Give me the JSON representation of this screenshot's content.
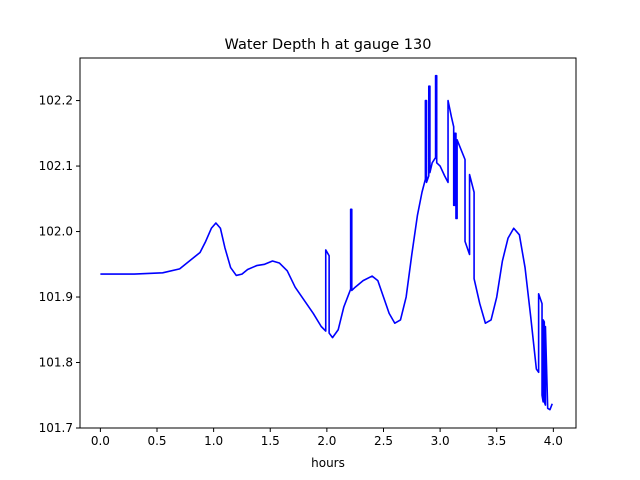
{
  "chart_data": {
    "type": "line",
    "title": "Water Depth h at gauge 130",
    "xlabel": "hours",
    "ylabel": "",
    "xlim": [
      -0.18,
      4.2
    ],
    "ylim": [
      101.7,
      102.265
    ],
    "xticks": [
      0.0,
      0.5,
      1.0,
      1.5,
      2.0,
      2.5,
      3.0,
      3.5,
      4.0
    ],
    "xtick_labels": [
      "0.0",
      "0.5",
      "1.0",
      "1.5",
      "2.0",
      "2.5",
      "3.0",
      "3.5",
      "4.0"
    ],
    "yticks": [
      101.7,
      101.8,
      101.9,
      102.0,
      102.1,
      102.2
    ],
    "ytick_labels": [
      "101.7",
      "101.8",
      "101.9",
      "102.0",
      "102.1",
      "102.2"
    ],
    "grid": false,
    "series": [
      {
        "color": "#0000ff",
        "x": [
          0.0,
          0.3,
          0.55,
          0.7,
          0.8,
          0.88,
          0.93,
          0.98,
          1.02,
          1.06,
          1.1,
          1.15,
          1.2,
          1.25,
          1.3,
          1.38,
          1.45,
          1.52,
          1.58,
          1.65,
          1.72,
          1.8,
          1.88,
          1.95,
          1.99,
          1.99,
          2.02,
          2.02,
          2.05,
          2.1,
          2.15,
          2.21,
          2.21,
          2.22,
          2.22,
          2.25,
          2.32,
          2.4,
          2.45,
          2.5,
          2.55,
          2.6,
          2.65,
          2.7,
          2.75,
          2.8,
          2.84,
          2.87,
          2.87,
          2.88,
          2.88,
          2.9,
          2.9,
          2.91,
          2.91,
          2.93,
          2.96,
          2.96,
          2.97,
          2.97,
          3.0,
          3.04,
          3.07,
          3.07,
          3.1,
          3.12,
          3.12,
          3.13,
          3.13,
          3.14,
          3.14,
          3.15,
          3.15,
          3.22,
          3.22,
          3.26,
          3.26,
          3.3,
          3.3,
          3.3,
          3.35,
          3.4,
          3.45,
          3.5,
          3.55,
          3.6,
          3.65,
          3.7,
          3.75,
          3.8,
          3.85,
          3.87,
          3.87,
          3.9,
          3.9,
          3.91,
          3.91,
          3.92,
          3.92,
          3.93,
          3.93,
          3.95,
          3.97,
          3.99
        ],
        "y": [
          101.935,
          101.935,
          101.937,
          101.943,
          101.957,
          101.968,
          101.985,
          102.005,
          102.013,
          102.005,
          101.975,
          101.945,
          101.933,
          101.935,
          101.942,
          101.948,
          101.95,
          101.955,
          101.952,
          101.94,
          101.915,
          101.895,
          101.875,
          101.855,
          101.848,
          101.972,
          101.963,
          101.845,
          101.838,
          101.85,
          101.885,
          101.912,
          102.034,
          102.034,
          101.91,
          101.915,
          101.925,
          101.932,
          101.925,
          101.9,
          101.875,
          101.86,
          101.865,
          101.9,
          101.965,
          102.025,
          102.06,
          102.08,
          102.2,
          102.2,
          102.075,
          102.085,
          102.222,
          102.222,
          102.09,
          102.105,
          102.113,
          102.238,
          102.238,
          102.105,
          102.1,
          102.085,
          102.075,
          102.2,
          102.175,
          102.16,
          102.04,
          102.04,
          102.15,
          102.15,
          102.02,
          102.02,
          102.14,
          102.11,
          101.985,
          101.965,
          102.087,
          102.06,
          101.928,
          101.928,
          101.89,
          101.86,
          101.865,
          101.9,
          101.955,
          101.99,
          102.005,
          101.995,
          101.945,
          101.87,
          101.79,
          101.785,
          101.905,
          101.89,
          101.75,
          101.74,
          101.865,
          101.862,
          101.74,
          101.735,
          101.855,
          101.73,
          101.728,
          101.737
        ]
      }
    ]
  }
}
